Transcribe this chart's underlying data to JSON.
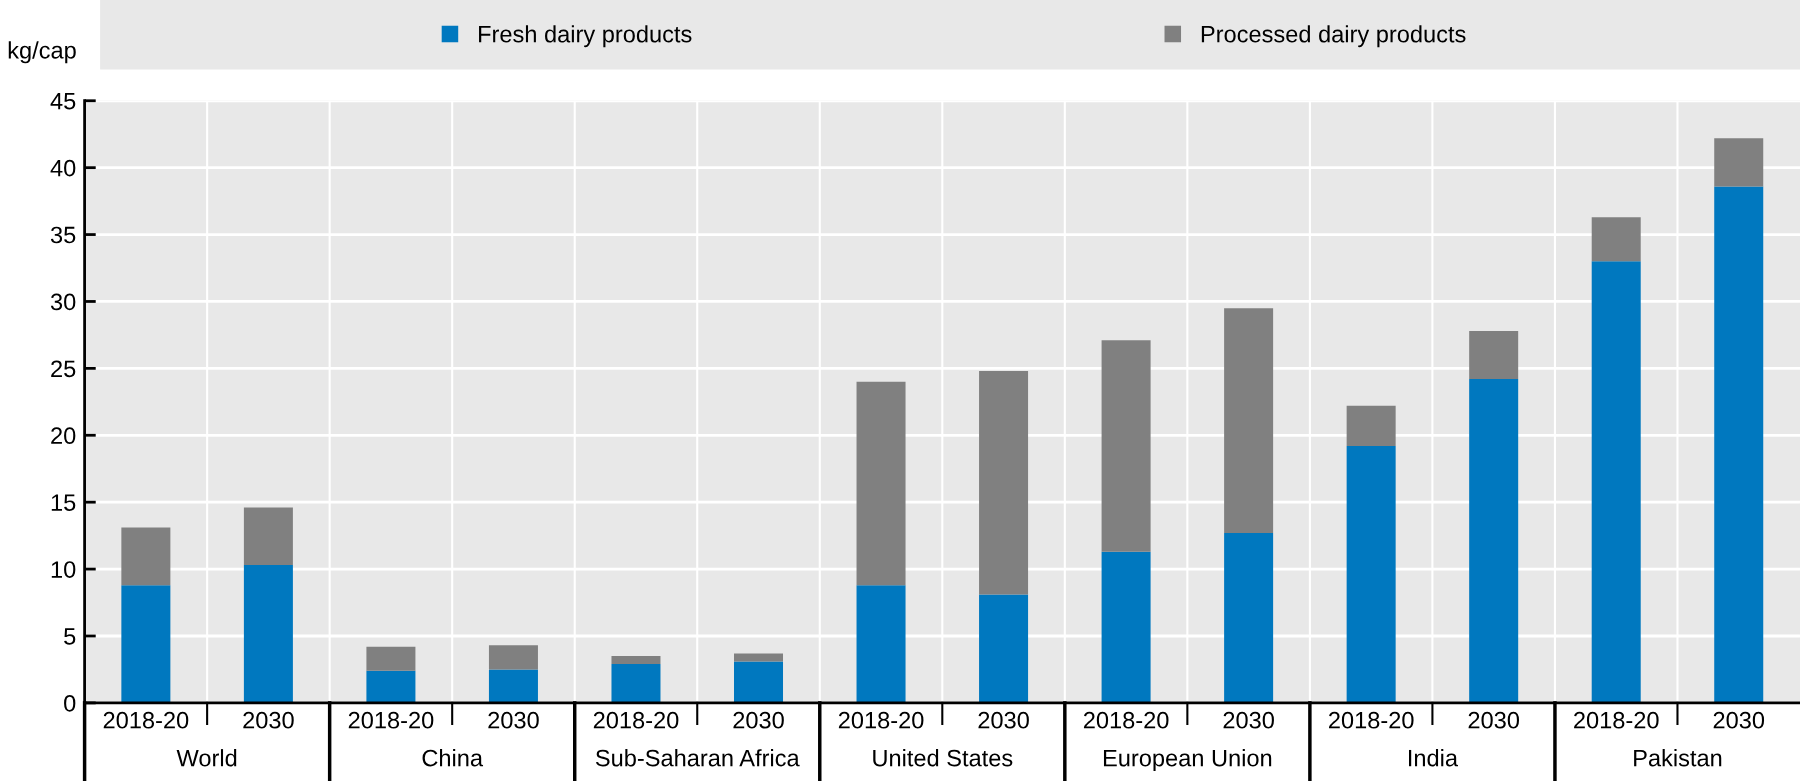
{
  "chart_data": {
    "type": "bar",
    "stacked": true,
    "ylabel": "kg/cap",
    "categories": [
      "2018-20",
      "2030",
      "2018-20",
      "2030",
      "2018-20",
      "2030",
      "2018-20",
      "2030",
      "2018-20",
      "2030",
      "2018-20",
      "2030",
      "2018-20",
      "2030"
    ],
    "series": [
      {
        "name": "Fresh dairy products",
        "color": "#0078bf",
        "values": [
          8.8,
          10.3,
          2.4,
          2.5,
          2.9,
          3.1,
          8.8,
          8.1,
          11.3,
          12.7,
          19.2,
          24.2,
          33.0,
          38.6
        ]
      },
      {
        "name": "Processed dairy products",
        "color": "#808080",
        "values": [
          4.3,
          4.3,
          1.8,
          1.8,
          0.6,
          0.6,
          15.2,
          16.7,
          15.8,
          16.8,
          3.0,
          3.6,
          3.3,
          3.6
        ]
      }
    ],
    "annotations": [
      "World",
      "China",
      "Sub-Saharan Africa",
      "United States",
      "European Union",
      "India",
      "Pakistan"
    ],
    "ylim": [
      0,
      45
    ],
    "yticks": [
      0,
      5,
      10,
      15,
      20,
      25,
      30,
      35,
      40,
      45
    ],
    "grid": true,
    "legend": "top"
  }
}
